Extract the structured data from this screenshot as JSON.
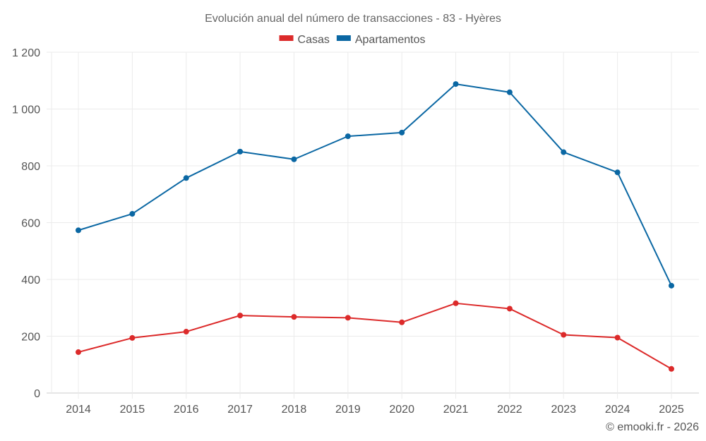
{
  "chart_data": {
    "type": "line",
    "title": "Evolución anual del número de transacciones - 83 - Hyères",
    "xlabel": "",
    "ylabel": "",
    "x": [
      "2014",
      "2015",
      "2016",
      "2017",
      "2018",
      "2019",
      "2020",
      "2021",
      "2022",
      "2023",
      "2024",
      "2025"
    ],
    "ylim": [
      0,
      1200
    ],
    "yticks": [
      0,
      200,
      400,
      600,
      800,
      1000,
      1200
    ],
    "ytick_labels": [
      "0",
      "200",
      "400",
      "600",
      "800",
      "1 000",
      "1 200"
    ],
    "grid": true,
    "legend_position": "top-center",
    "series": [
      {
        "name": "Casas",
        "color": "#dc2a2a",
        "values": [
          144,
          194,
          216,
          273,
          268,
          265,
          249,
          316,
          297,
          205,
          195,
          85
        ]
      },
      {
        "name": "Apartamentos",
        "color": "#0a67a3",
        "values": [
          573,
          631,
          757,
          850,
          823,
          904,
          917,
          1088,
          1059,
          848,
          777,
          378
        ]
      }
    ]
  },
  "credit": "© emooki.fr - 2026"
}
